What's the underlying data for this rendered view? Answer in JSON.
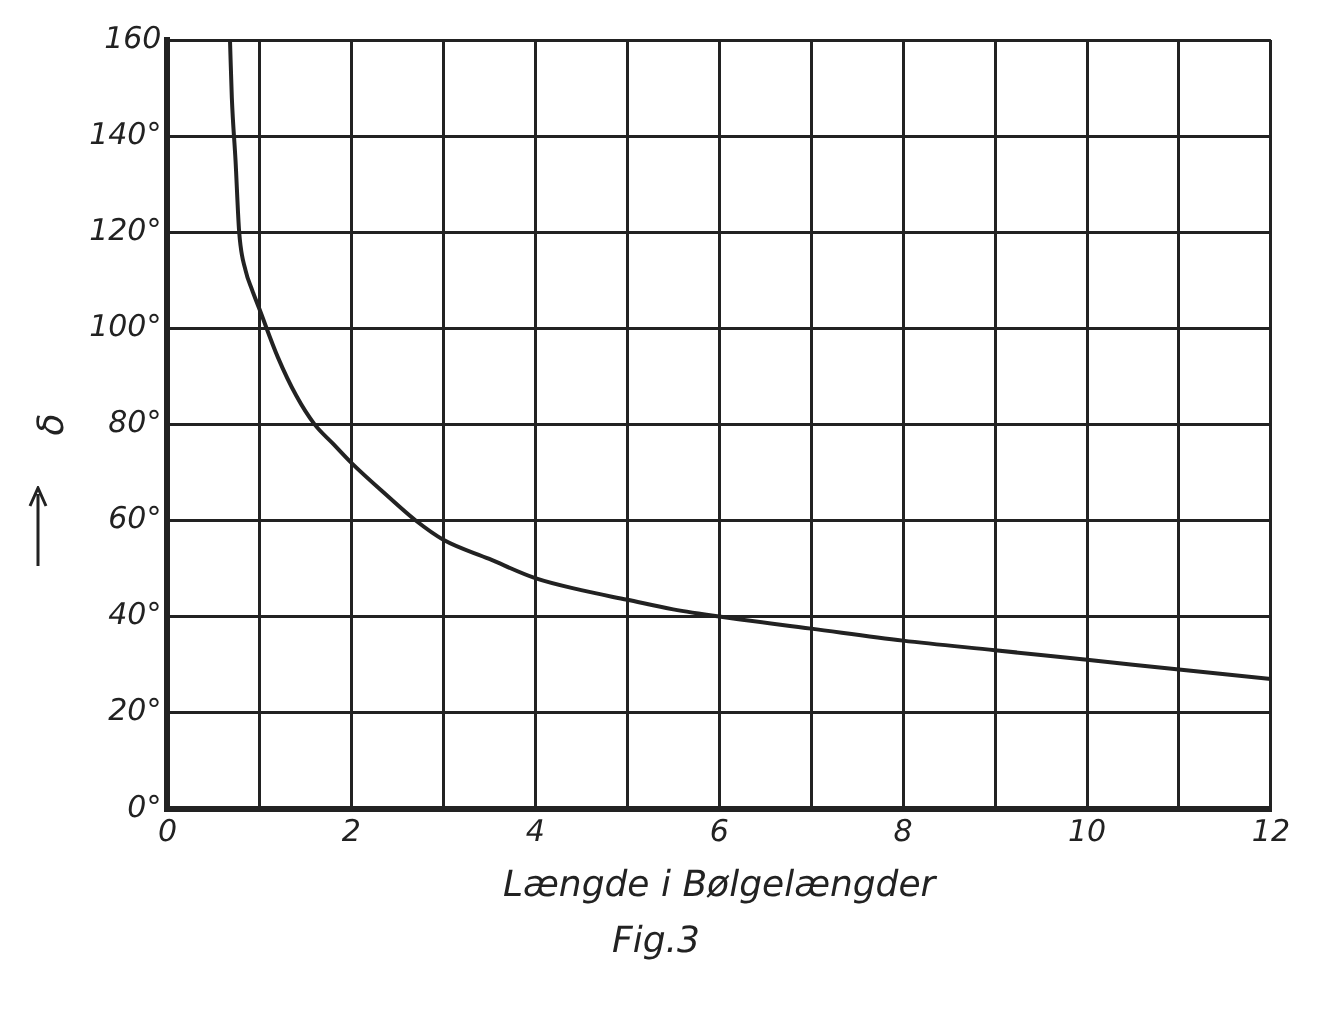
{
  "chart_data": {
    "type": "line",
    "xlabel": "Længde i Bølgelængder",
    "ylabel": "δ",
    "annotations": [
      "Fig.3"
    ],
    "series": [
      {
        "color": "#222222",
        "x": [
          0.68,
          0.7,
          0.74,
          0.78,
          0.85,
          0.92,
          1,
          1.2,
          1.4,
          1.6,
          1.8,
          2,
          2.4,
          2.7,
          3,
          3.5,
          4,
          4.5,
          5,
          5.5,
          6,
          7,
          8,
          9,
          10,
          11,
          12
        ],
        "values": [
          160,
          148,
          135,
          120,
          112,
          108,
          104,
          94,
          86,
          80,
          76,
          72,
          65,
          60,
          56,
          52,
          48,
          45.5,
          43.5,
          41.5,
          40,
          37.5,
          35,
          33,
          31,
          29,
          27
        ]
      }
    ],
    "xlim": [
      0,
      12
    ],
    "ylim": [
      0,
      160
    ],
    "xticks": [
      0,
      {
        "value": 1,
        "label": null
      },
      2,
      {
        "value": 3,
        "label": null
      },
      4,
      {
        "value": 5,
        "label": null
      },
      6,
      {
        "value": 7,
        "label": null
      },
      8,
      {
        "value": 9,
        "label": null
      },
      10,
      {
        "value": 11,
        "label": null
      },
      12
    ],
    "yticks": [
      {
        "value": 0,
        "label": "0°"
      },
      {
        "value": 20,
        "label": "20°"
      },
      {
        "value": 40,
        "label": "40°"
      },
      {
        "value": 60,
        "label": "60°"
      },
      {
        "value": 80,
        "label": "80°"
      },
      {
        "value": 100,
        "label": "100°"
      },
      {
        "value": 120,
        "label": "120°"
      },
      {
        "value": 140,
        "label": "140°"
      },
      160
    ],
    "grid": true,
    "legend": false,
    "marker": "none",
    "line_style": "solid"
  }
}
